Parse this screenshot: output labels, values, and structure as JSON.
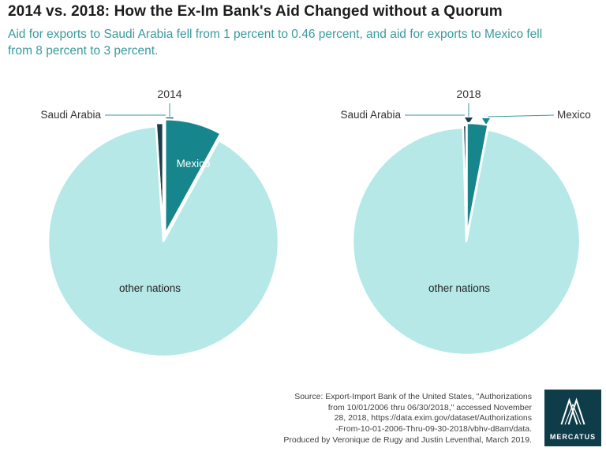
{
  "page": {
    "title": "2014 vs. 2018: How the Ex-Im Bank's Aid Changed without a Quorum",
    "subtitle": "Aid for exports to Saudi Arabia fell from 1 percent to 0.46 percent, and aid for exports to Mexico fell from 8 percent to 3 percent."
  },
  "colors": {
    "accent_teal": "#17868c",
    "light_teal": "#b6e8e8",
    "dark_sliver": "#1d3c49",
    "subtitle_teal": "#3a9a9e",
    "logo_background": "#0e3c49"
  },
  "chart_data": [
    {
      "type": "pie",
      "title": "2014",
      "start_angle_deg": -3.6,
      "slices": [
        {
          "label": "Saudi Arabia",
          "value": 1,
          "color": "#1d3c49",
          "explode": 4
        },
        {
          "label": "Mexico",
          "value": 8,
          "color": "#17868c",
          "explode": 9
        },
        {
          "label": "other nations",
          "value": 91,
          "color": "#b6e8e8",
          "explode": 0
        }
      ],
      "legend_position": "callouts",
      "units": "percent"
    },
    {
      "type": "pie",
      "title": "2018",
      "start_angle_deg": -1.66,
      "slices": [
        {
          "label": "Saudi Arabia",
          "value": 0.46,
          "color": "#1d3c49",
          "explode": 3
        },
        {
          "label": "Mexico",
          "value": 3,
          "color": "#17868c",
          "explode": 6
        },
        {
          "label": "other nations",
          "value": 96.54,
          "color": "#b6e8e8",
          "explode": 0
        }
      ],
      "legend_position": "callouts",
      "units": "percent"
    }
  ],
  "source": {
    "lines": [
      "Source: Export-Import Bank of the United States, \"Authorizations",
      "from 10/01/2006 thru 06/30/2018,\" accessed November",
      "28, 2018, https://data.exim.gov/dataset/Authorizations",
      "-From-10-01-2006-Thru-09-30-2018/vbhv-d8am/data.",
      "Produced by Veronique de Rugy and Justin Leventhal, March 2019."
    ]
  },
  "logo": {
    "text": "MERCATUS"
  }
}
